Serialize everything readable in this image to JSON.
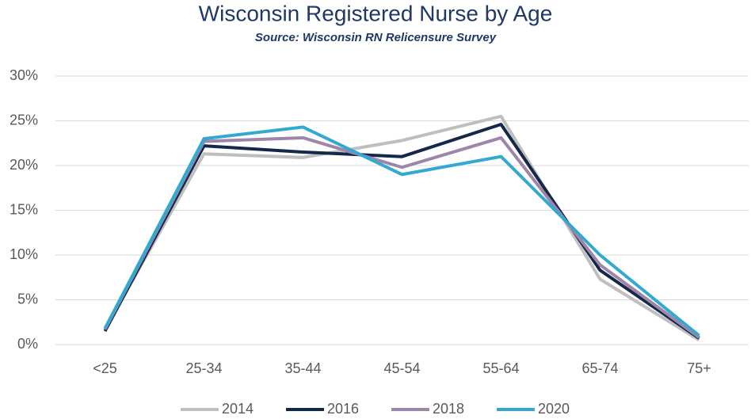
{
  "chart_data": {
    "type": "line",
    "title": "Wisconsin Registered Nurse by Age",
    "subtitle": "Source: Wisconsin RN Relicensure Survey",
    "categories": [
      "<25",
      "25-34",
      "35-44",
      "45-54",
      "55-64",
      "65-74",
      "75+"
    ],
    "series": [
      {
        "name": "2014",
        "color": "#bfbfbf",
        "values": [
          1.7,
          21.3,
          20.9,
          22.8,
          25.5,
          7.3,
          0.5
        ]
      },
      {
        "name": "2016",
        "color": "#14284b",
        "values": [
          1.5,
          22.2,
          21.5,
          21.0,
          24.6,
          8.3,
          0.7
        ]
      },
      {
        "name": "2018",
        "color": "#9e86a8",
        "values": [
          1.7,
          22.7,
          23.1,
          19.8,
          23.1,
          8.9,
          0.8
        ]
      },
      {
        "name": "2020",
        "color": "#34a9cf",
        "values": [
          1.8,
          23.0,
          24.3,
          19.0,
          21.0,
          10.0,
          1.0
        ]
      }
    ],
    "ylim": [
      0,
      30
    ],
    "yticks": [
      {
        "value": 0,
        "label": "0%"
      },
      {
        "value": 5,
        "label": "5%"
      },
      {
        "value": 10,
        "label": "10%"
      },
      {
        "value": 15,
        "label": "15%"
      },
      {
        "value": 20,
        "label": "20%"
      },
      {
        "value": 25,
        "label": "25%"
      },
      {
        "value": 30,
        "label": "30%"
      }
    ],
    "grid": true,
    "legend": "bottom"
  }
}
